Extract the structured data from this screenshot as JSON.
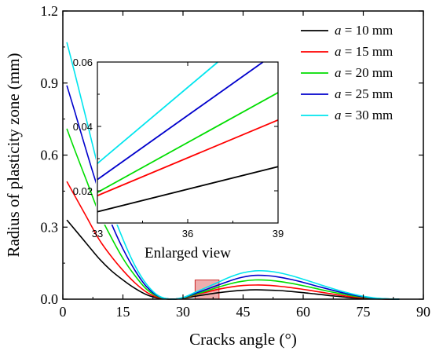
{
  "chart_data": {
    "type": "line",
    "xlabel": "Cracks angle (°)",
    "ylabel": "Radius of plasticity zone (mm)",
    "xlim": [
      0,
      90
    ],
    "ylim": [
      0,
      1.2
    ],
    "xticks": [
      0,
      15,
      30,
      45,
      60,
      75,
      90
    ],
    "yticks": [
      0.0,
      0.3,
      0.6,
      0.9,
      1.2
    ],
    "x_tick_labels": [
      "0",
      "15",
      "30",
      "45",
      "60",
      "75",
      "90"
    ],
    "y_tick_labels": [
      "0.0",
      "0.3",
      "0.6",
      "0.9",
      "1.2"
    ],
    "legend_position": "top-right",
    "legend_prefix": "a",
    "highlight_box": {
      "x": [
        33,
        39
      ],
      "y": [
        0,
        0.06
      ]
    },
    "series": [
      {
        "name": "= 10 mm",
        "color": "#000000",
        "x": [
          1,
          3,
          6,
          9,
          12,
          15,
          18,
          21,
          24,
          27,
          30,
          33,
          36,
          39,
          42,
          45,
          48,
          51,
          54,
          57,
          60,
          63,
          66,
          69,
          72,
          75,
          78,
          81,
          84
        ],
        "y": [
          0.33,
          0.29,
          0.23,
          0.17,
          0.12,
          0.08,
          0.045,
          0.018,
          0.004,
          0.0,
          0.003,
          0.012,
          0.02,
          0.027,
          0.033,
          0.037,
          0.039,
          0.038,
          0.036,
          0.032,
          0.027,
          0.022,
          0.016,
          0.011,
          0.006,
          0.003,
          0.001,
          0.0,
          0.0
        ]
      },
      {
        "name": "= 15 mm",
        "color": "#ff0000",
        "x": [
          1,
          3,
          6,
          9,
          12,
          15,
          18,
          21,
          24,
          27,
          30,
          33,
          36,
          39,
          42,
          45,
          48,
          51,
          54,
          57,
          60,
          63,
          66,
          69,
          72,
          75,
          78,
          81,
          84
        ],
        "y": [
          0.49,
          0.43,
          0.34,
          0.25,
          0.18,
          0.12,
          0.068,
          0.028,
          0.006,
          0.0,
          0.004,
          0.018,
          0.03,
          0.042,
          0.051,
          0.057,
          0.059,
          0.058,
          0.054,
          0.048,
          0.041,
          0.033,
          0.025,
          0.017,
          0.01,
          0.005,
          0.002,
          0.0,
          0.0
        ]
      },
      {
        "name": "= 20 mm",
        "color": "#00dd00",
        "x": [
          1,
          3,
          6,
          9,
          12,
          15,
          18,
          21,
          24,
          27,
          30,
          33,
          36,
          39,
          42,
          45,
          48,
          51,
          54,
          57,
          60,
          63,
          66,
          69,
          72,
          75,
          78,
          81,
          84
        ],
        "y": [
          0.71,
          0.62,
          0.49,
          0.36,
          0.26,
          0.17,
          0.098,
          0.04,
          0.009,
          0.0,
          0.005,
          0.02,
          0.035,
          0.051,
          0.065,
          0.075,
          0.08,
          0.079,
          0.074,
          0.066,
          0.056,
          0.045,
          0.034,
          0.024,
          0.015,
          0.008,
          0.003,
          0.001,
          0.0
        ]
      },
      {
        "name": "= 25 mm",
        "color": "#0000cc",
        "x": [
          1,
          3,
          6,
          9,
          12,
          15,
          18,
          21,
          24,
          27,
          30,
          33,
          36,
          39,
          42,
          45,
          48,
          51,
          54,
          57,
          60,
          63,
          66,
          69,
          72,
          75,
          78,
          81,
          84
        ],
        "y": [
          0.89,
          0.78,
          0.61,
          0.45,
          0.32,
          0.21,
          0.12,
          0.05,
          0.011,
          0.0,
          0.006,
          0.024,
          0.042,
          0.06,
          0.078,
          0.092,
          0.099,
          0.098,
          0.092,
          0.082,
          0.07,
          0.056,
          0.043,
          0.03,
          0.019,
          0.01,
          0.004,
          0.001,
          0.0
        ]
      },
      {
        "name": "= 30 mm",
        "color": "#00e5ee",
        "x": [
          1,
          3,
          6,
          9,
          12,
          15,
          18,
          21,
          24,
          27,
          30,
          33,
          36,
          39,
          42,
          45,
          48,
          51,
          54,
          57,
          60,
          63,
          66,
          69,
          72,
          75,
          78,
          81,
          84
        ],
        "y": [
          1.07,
          0.94,
          0.74,
          0.54,
          0.38,
          0.25,
          0.14,
          0.06,
          0.013,
          0.0,
          0.007,
          0.028,
          0.05,
          0.072,
          0.094,
          0.11,
          0.118,
          0.117,
          0.11,
          0.098,
          0.083,
          0.067,
          0.051,
          0.036,
          0.023,
          0.012,
          0.005,
          0.001,
          0.0
        ]
      }
    ],
    "inset": {
      "title": "Enlarged view",
      "xlim": [
        33,
        39
      ],
      "ylim": [
        0.01,
        0.06
      ],
      "xticks": [
        33,
        36,
        39
      ],
      "yticks": [
        0.02,
        0.04,
        0.06
      ],
      "x_tick_labels": [
        "33",
        "36",
        "39"
      ],
      "y_tick_labels": [
        "0.02",
        "0.04",
        "0.06"
      ],
      "series": [
        {
          "color": "#000000",
          "x": [
            33,
            39
          ],
          "y": [
            0.0135,
            0.0275
          ]
        },
        {
          "color": "#ff0000",
          "x": [
            33,
            39
          ],
          "y": [
            0.0185,
            0.042
          ]
        },
        {
          "color": "#00dd00",
          "x": [
            33,
            39
          ],
          "y": [
            0.0195,
            0.0505
          ]
        },
        {
          "color": "#0000cc",
          "x": [
            33,
            38.5
          ],
          "y": [
            0.0235,
            0.06
          ]
        },
        {
          "color": "#00e5ee",
          "x": [
            33,
            37
          ],
          "y": [
            0.0285,
            0.06
          ]
        }
      ]
    }
  }
}
